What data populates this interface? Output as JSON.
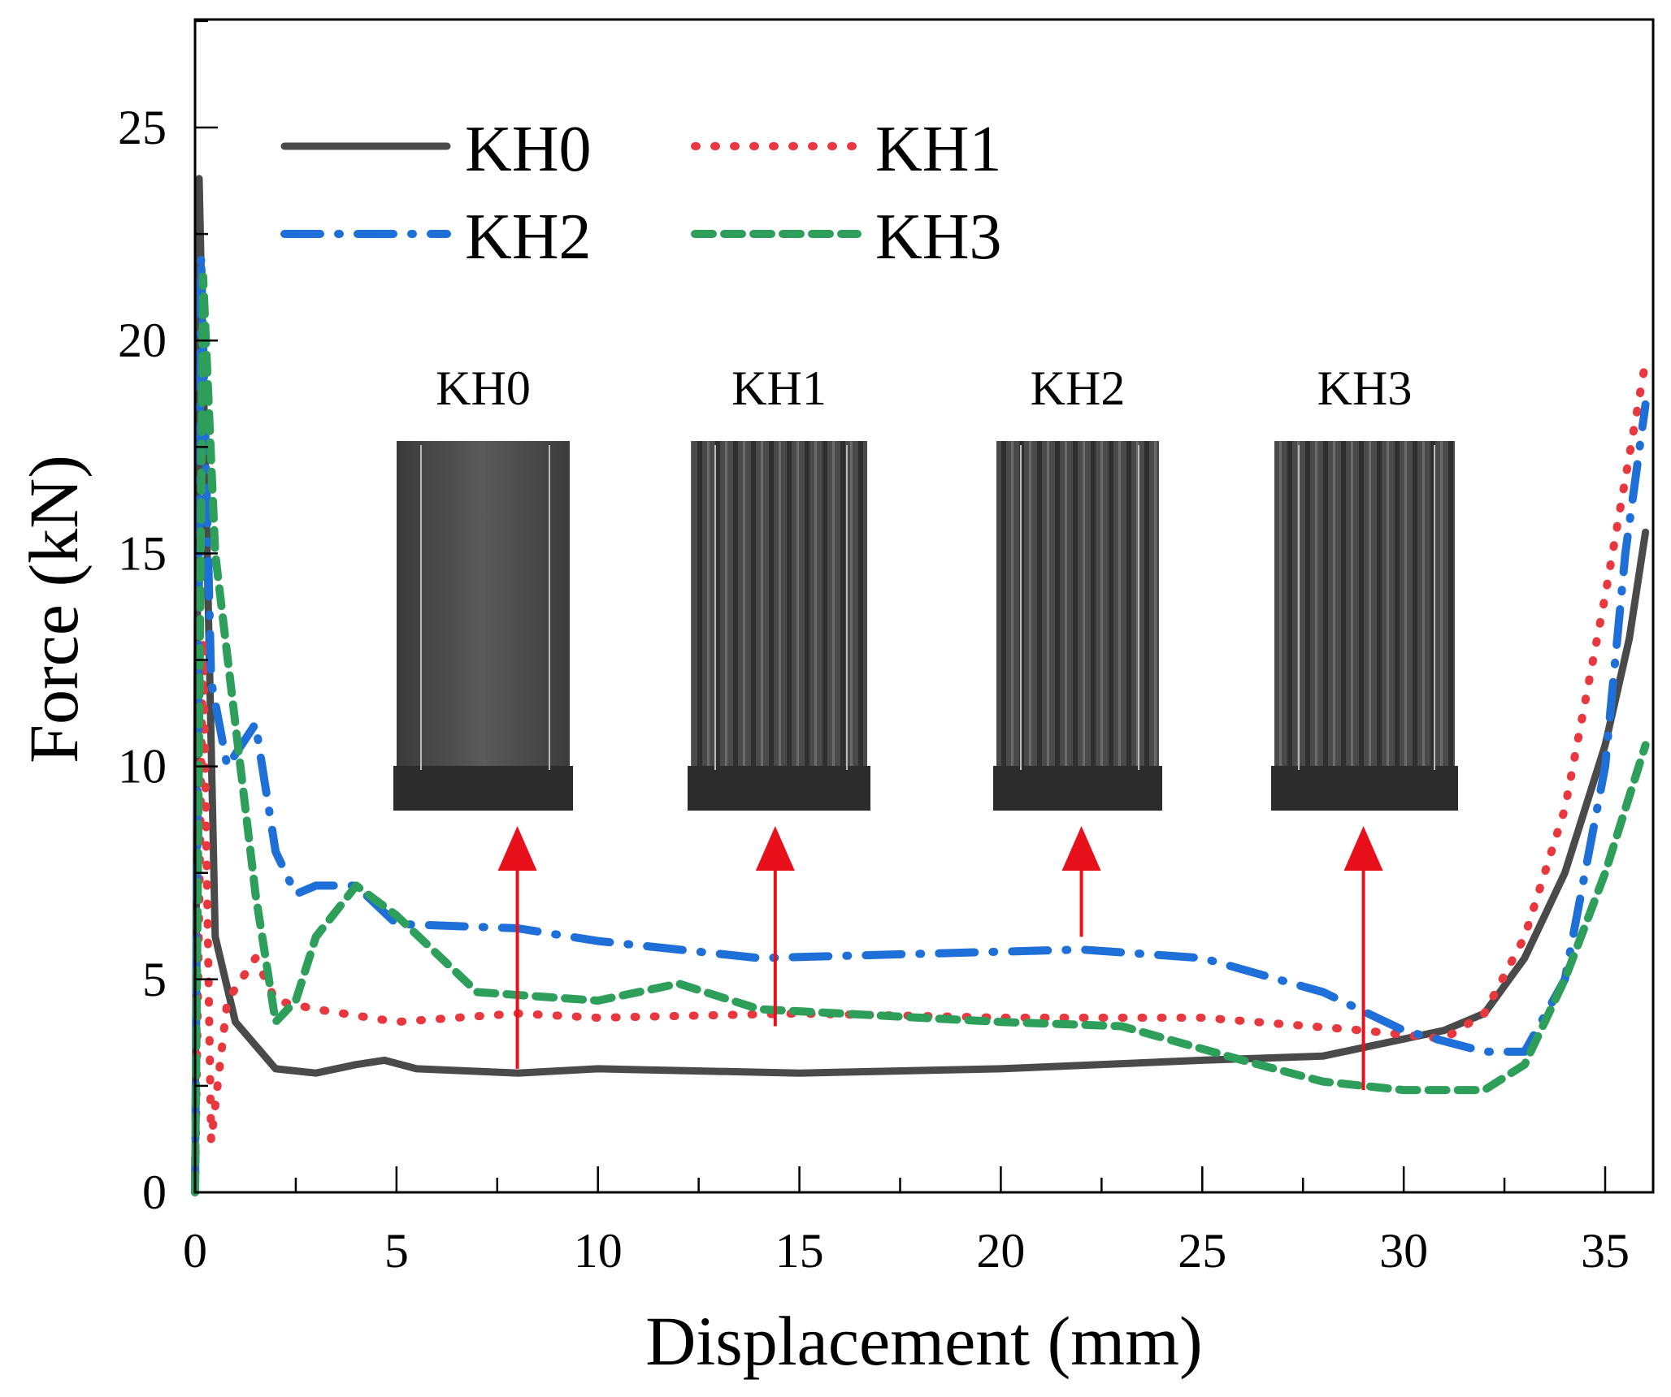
{
  "chart_data": {
    "type": "line",
    "title": "",
    "xlabel": "Displacement (mm)",
    "ylabel": "Force (kN)",
    "xlim": [
      0,
      36
    ],
    "ylim": [
      0,
      27.5
    ],
    "xticks": [
      0,
      5,
      10,
      15,
      20,
      25,
      30,
      35
    ],
    "yticks": [
      0,
      5,
      10,
      15,
      20,
      25
    ],
    "grid": false,
    "legend_position": "top-left",
    "series": [
      {
        "name": "KH0",
        "color": "#4a4a4a",
        "style": "solid",
        "x": [
          0,
          0.1,
          0.3,
          0.5,
          1,
          2,
          3,
          4,
          4.7,
          5.5,
          8,
          10,
          15,
          20,
          25,
          28,
          29.5,
          31,
          32,
          33,
          34,
          35,
          35.6,
          36
        ],
        "y": [
          0,
          23.8,
          15,
          6,
          4,
          2.9,
          2.8,
          3,
          3.1,
          2.9,
          2.8,
          2.9,
          2.8,
          2.9,
          3.1,
          3.2,
          3.5,
          3.8,
          4.2,
          5.5,
          7.5,
          10.5,
          13,
          15.5
        ]
      },
      {
        "name": "KH1",
        "color": "#e8383d",
        "style": "dotted",
        "x": [
          0,
          0.2,
          0.4,
          0.8,
          1.5,
          2,
          3,
          5,
          8,
          10,
          15,
          20,
          25,
          29,
          31,
          32,
          33,
          34,
          35,
          36
        ],
        "y": [
          0,
          13,
          1.2,
          4.5,
          5.5,
          4.5,
          4.3,
          4.0,
          4.2,
          4.1,
          4.2,
          4.1,
          4.1,
          3.8,
          3.6,
          4.2,
          6,
          9,
          14,
          19.5
        ]
      },
      {
        "name": "KH2",
        "color": "#1f6fd8",
        "style": "dash-dot",
        "x": [
          0,
          0.15,
          0.4,
          0.8,
          1.5,
          2,
          2.5,
          3,
          4,
          5,
          8,
          10,
          14,
          18,
          22,
          25,
          28,
          30,
          32,
          33,
          34,
          35,
          35.5,
          36
        ],
        "y": [
          0,
          22,
          12,
          10,
          11,
          8,
          7,
          7.2,
          7.2,
          6.3,
          6.2,
          5.9,
          5.5,
          5.6,
          5.7,
          5.5,
          4.7,
          3.8,
          3.3,
          3.3,
          5,
          10,
          15,
          18.5
        ]
      },
      {
        "name": "KH3",
        "color": "#2e9e5b",
        "style": "dashed",
        "x": [
          0,
          0.2,
          0.5,
          1,
          1.5,
          2,
          2.5,
          3,
          4,
          5,
          7,
          10,
          12,
          14,
          18,
          20,
          23,
          26,
          28,
          30,
          32,
          33,
          34,
          35,
          36
        ],
        "y": [
          0,
          21.5,
          15,
          11,
          7,
          4,
          4.5,
          6,
          7.2,
          6.5,
          4.7,
          4.5,
          4.9,
          4.3,
          4.1,
          4.0,
          3.9,
          3.1,
          2.6,
          2.4,
          2.4,
          3,
          5,
          7.5,
          10.5
        ]
      }
    ],
    "annotations": {
      "insets": [
        {
          "label": "KH0",
          "arrow_x": 8,
          "arrow_from_y": 2.9
        },
        {
          "label": "KH1",
          "arrow_x": 14.4,
          "arrow_from_y": 3.9
        },
        {
          "label": "KH2",
          "arrow_x": 22,
          "arrow_from_y": 6.0
        },
        {
          "label": "KH3",
          "arrow_x": 29,
          "arrow_from_y": 2.4
        }
      ],
      "arrow_tip_y": 8.6,
      "arrow_color": "#e8101a"
    }
  }
}
